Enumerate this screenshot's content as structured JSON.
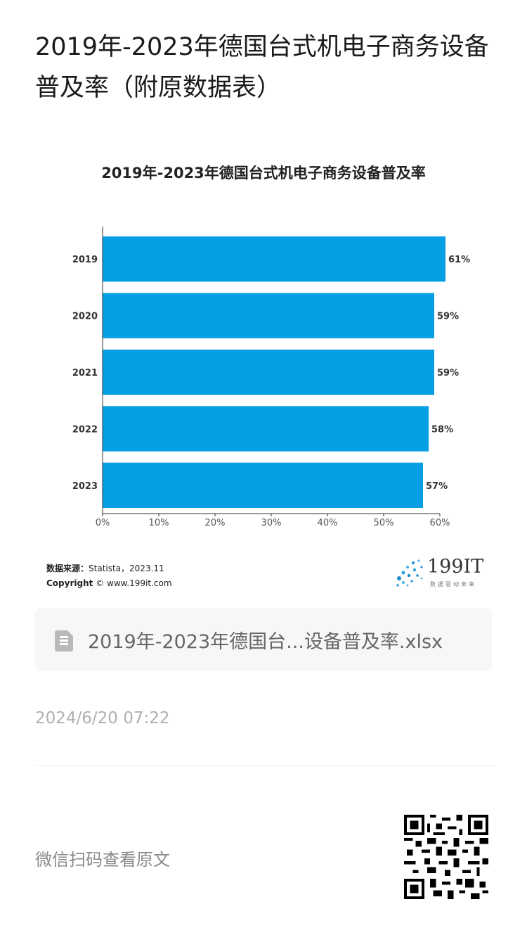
{
  "page": {
    "title": "2019年-2023年德国台式机电子商务设备普及率（附原数据表）",
    "source_label": "数据来源：",
    "source_value": "Statista，2023.11",
    "copyright_label": "Copyright",
    "copyright_value": "© www.199it.com",
    "logo_text": "199IT",
    "logo_sub": "数据驱动未来",
    "attachment_name": "2019年-2023年德国台...设备普及率.xlsx",
    "timestamp": "2024/6/20 07:22",
    "scan_text": "微信扫码查看原文",
    "colors": {
      "bar": "#069fe3",
      "axis": "#333333"
    },
    "icons": {
      "file": "file-icon",
      "qr": "qr-code-icon"
    }
  },
  "chart_data": {
    "type": "bar",
    "orientation": "horizontal",
    "title": "2019年-2023年德国台式机电子商务设备普及率",
    "categories": [
      "2019",
      "2020",
      "2021",
      "2022",
      "2023"
    ],
    "values": [
      61,
      59,
      59,
      58,
      57
    ],
    "value_labels": [
      "61%",
      "59%",
      "59%",
      "58%",
      "57%"
    ],
    "xlim": [
      0,
      60
    ],
    "x_ticks": [
      "0%",
      "10%",
      "20%",
      "30%",
      "40%",
      "50%",
      "60%"
    ],
    "grid": false
  }
}
